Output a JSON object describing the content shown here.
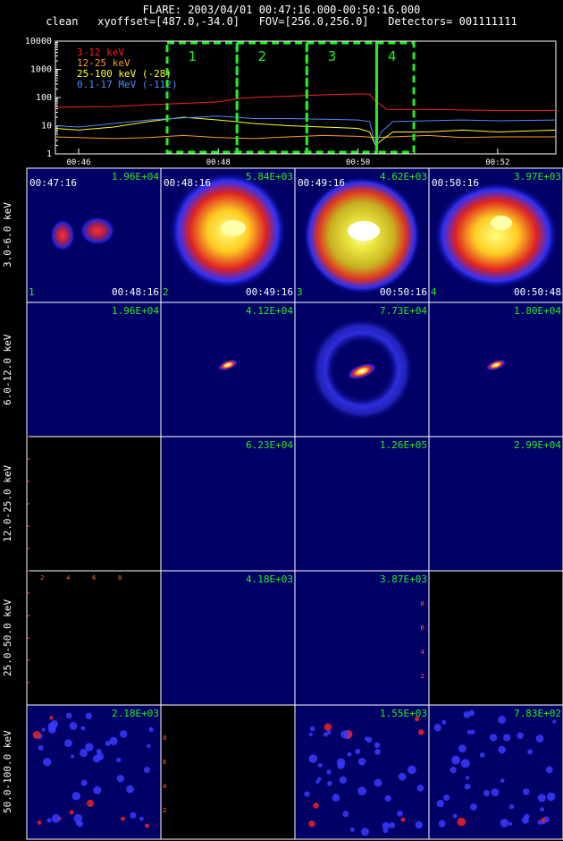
{
  "header": {
    "line1": "FLARE: 2003/04/01 00:47:16.000-00:50:16.000",
    "line2": "clean   xyoffset=[487.0,-34.0]   FOV=[256.0,256.0]   Detectors= 001111111"
  },
  "chart_data": [
    {
      "type": "line",
      "yscale": "log",
      "ylim": [
        1,
        10000
      ],
      "y_ticks": [
        "1",
        "10",
        "100",
        "1000",
        "10000"
      ],
      "xlim": [
        "00:45:40",
        "00:52:50"
      ],
      "x_ticks": [
        "00:46",
        "00:48",
        "00:50",
        "00:52"
      ],
      "legend_placement": "top-left",
      "series": [
        {
          "name": "3-12 keV",
          "color": "#ff2020",
          "x": [
            "00:45:40",
            "00:46:30",
            "00:47:00",
            "00:47:30",
            "00:48:00",
            "00:48:20",
            "00:48:40",
            "00:49:00",
            "00:49:30",
            "00:50:00",
            "00:50:10",
            "00:50:15",
            "00:50:25",
            "00:51:00",
            "00:51:30",
            "00:52:00",
            "00:52:50"
          ],
          "y": [
            45,
            48,
            55,
            62,
            70,
            95,
            105,
            112,
            125,
            135,
            130,
            75,
            38,
            38,
            36,
            35,
            35
          ]
        },
        {
          "name": "12-25 keV",
          "color": "#ff9a20",
          "x": [
            "00:45:40",
            "00:46:30",
            "00:47:00",
            "00:47:30",
            "00:48:00",
            "00:48:30",
            "00:49:00",
            "00:49:30",
            "00:50:00",
            "00:50:15",
            "00:50:30",
            "00:51:00",
            "00:51:30",
            "00:52:00",
            "00:52:50"
          ],
          "y": [
            4,
            3.5,
            3.8,
            4.5,
            3.8,
            3.5,
            4,
            4.5,
            4.2,
            3.8,
            4,
            4.5,
            3.8,
            4,
            4
          ]
        },
        {
          "name": "25-100 keV (-28)",
          "color": "#ffff20",
          "x": [
            "00:45:40",
            "00:46:00",
            "00:46:30",
            "00:47:00",
            "00:47:30",
            "00:48:00",
            "00:48:30",
            "00:49:00",
            "00:49:30",
            "00:50:00",
            "00:50:10",
            "00:50:15",
            "00:50:20",
            "00:50:30",
            "00:51:00",
            "00:51:30",
            "00:52:00",
            "00:52:50"
          ],
          "y": [
            8,
            7,
            9,
            14,
            20,
            16,
            12,
            10,
            9,
            8,
            6,
            2,
            3,
            6,
            6,
            7,
            6,
            7
          ]
        },
        {
          "name": "0.1-17 MeV (-112)",
          "color": "#4a8cff",
          "x": [
            "00:45:40",
            "00:46:00",
            "00:46:30",
            "00:47:00",
            "00:47:30",
            "00:48:00",
            "00:48:30",
            "00:49:00",
            "00:49:30",
            "00:50:00",
            "00:50:10",
            "00:50:15",
            "00:50:20",
            "00:50:30",
            "00:51:00",
            "00:51:30",
            "00:52:00",
            "00:52:50"
          ],
          "y": [
            10,
            9,
            12,
            16,
            19,
            22,
            18,
            18,
            17,
            16,
            14,
            2,
            6,
            14,
            15,
            16,
            15,
            16
          ]
        }
      ],
      "intervals": [
        {
          "label": "1",
          "start": "00:47:16",
          "end": "00:48:16",
          "color": "#22ee22"
        },
        {
          "label": "2",
          "start": "00:48:16",
          "end": "00:49:16",
          "color": "#22ee22"
        },
        {
          "label": "3",
          "start": "00:49:16",
          "end": "00:50:16",
          "color": "#22ee22"
        },
        {
          "label": "4",
          "start": "00:50:16",
          "end": "00:50:48",
          "color": "#22ee22"
        }
      ]
    },
    {
      "type": "heatmap",
      "energy_bands": [
        "3.0-6.0 keV",
        "6.0-12.0 keV",
        "12.0-25.0 keV",
        "25.0-50.0 keV",
        "50.0-100.0 keV"
      ],
      "interval_labels": [
        "1",
        "2",
        "3",
        "4"
      ],
      "start_times": [
        "00:47:16",
        "00:48:16",
        "00:49:16",
        "00:50:16"
      ],
      "end_times": [
        "00:48:16",
        "00:49:16",
        "00:50:16",
        "00:50:48"
      ],
      "peak_values": [
        [
          "1.96E+04",
          "5.84E+03",
          "4.62E+03",
          "3.97E+03"
        ],
        [
          "1.96E+04",
          "4.12E+04",
          "7.73E+04",
          "1.80E+04"
        ],
        [
          "",
          "6.23E+04",
          "1.26E+05",
          "2.99E+04"
        ],
        [
          "",
          "4.18E+03",
          "3.87E+03",
          ""
        ],
        [
          "2.18E+03",
          "",
          "1.55E+03",
          "7.83E+02"
        ]
      ],
      "orange_axis_ticks": [
        "2",
        "4",
        "6",
        "8"
      ]
    }
  ]
}
